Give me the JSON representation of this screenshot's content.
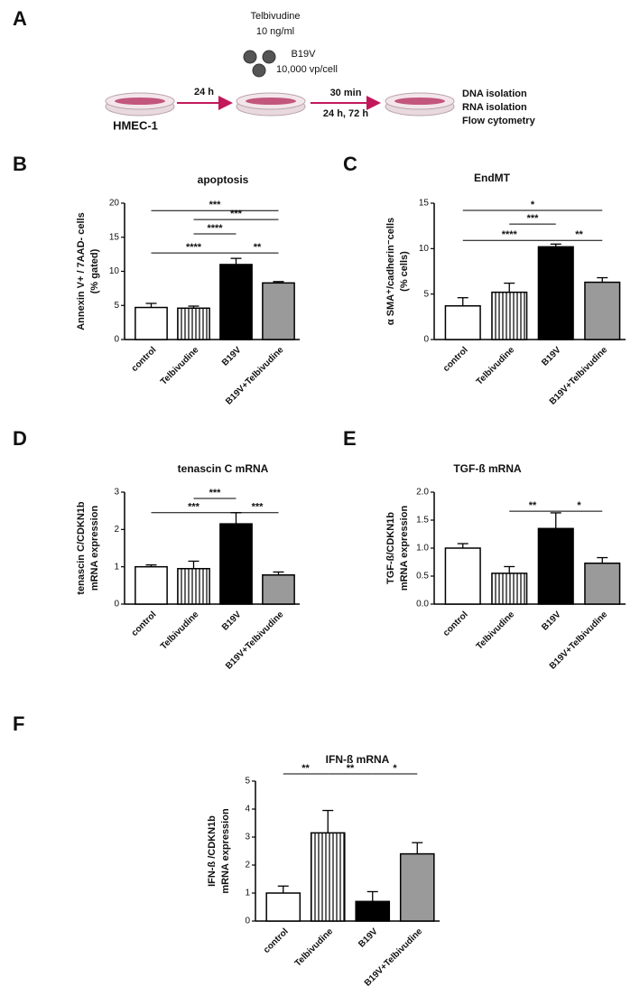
{
  "schema": {
    "panel": "A",
    "drug": "Telbivudine",
    "drug_dose": "10 ng/ml",
    "virus": "B19V",
    "virus_dose": "10,000 vp/cell",
    "step1": "24 h",
    "cells": "HMEC-1",
    "step2a": "30 min",
    "step2b": "24 h, 72 h",
    "readouts": [
      "DNA isolation",
      "RNA isolation",
      "Flow cytometry"
    ]
  },
  "chart_data": [
    {
      "type": "bar",
      "panel": "B",
      "title": "apoptosis",
      "ylabel": [
        "Annexin V+ / 7AAD- cells",
        "(% gated)"
      ],
      "categories": [
        "control",
        "Telbivudine",
        "B19V",
        "B19V+Telbivudine"
      ],
      "values": [
        4.7,
        4.6,
        11.0,
        8.3
      ],
      "errors": [
        0.6,
        0.3,
        0.9,
        0.2
      ],
      "colors": [
        "#ffffff",
        "#ffffff",
        "#000000",
        "#9a9a9a"
      ],
      "hatch": [
        false,
        true,
        false,
        false
      ],
      "ylim": [
        0,
        20
      ],
      "yticks": [
        0,
        5,
        10,
        15,
        20
      ],
      "significance": [
        {
          "from": 0,
          "to": 3,
          "y": 18.9,
          "label": "***"
        },
        {
          "from": 1,
          "to": 3,
          "y": 17.6,
          "label": "***"
        },
        {
          "from": 1,
          "to": 2,
          "y": 15.5,
          "label": "****"
        },
        {
          "from": 0,
          "to": 2,
          "y": 12.7,
          "label": "****"
        },
        {
          "from": 2,
          "to": 3,
          "y": 12.7,
          "label": "**"
        }
      ]
    },
    {
      "type": "bar",
      "panel": "C",
      "title": "EndMT",
      "ylabel": [
        "α SMA⁺/cadherin⁻cells",
        "(% cells)"
      ],
      "categories": [
        "control",
        "Telbivudine",
        "B19V",
        "B19V+Telbivudine"
      ],
      "values": [
        3.7,
        5.2,
        10.2,
        6.3
      ],
      "errors": [
        0.9,
        1.0,
        0.3,
        0.5
      ],
      "colors": [
        "#ffffff",
        "#ffffff",
        "#000000",
        "#9a9a9a"
      ],
      "hatch": [
        false,
        true,
        false,
        false
      ],
      "ylim": [
        0,
        15
      ],
      "yticks": [
        0,
        5,
        10,
        15
      ],
      "significance": [
        {
          "from": 0,
          "to": 3,
          "y": 14.2,
          "label": "*"
        },
        {
          "from": 1,
          "to": 2,
          "y": 12.7,
          "label": "***"
        },
        {
          "from": 0,
          "to": 2,
          "y": 10.9,
          "label": "****"
        },
        {
          "from": 2,
          "to": 3,
          "y": 10.9,
          "label": "**"
        }
      ]
    },
    {
      "type": "bar",
      "panel": "D",
      "title": "tenascin C mRNA",
      "ylabel": [
        "tenascin C/CDKN1b",
        "mRNA expression"
      ],
      "categories": [
        "control",
        "Telbivudine",
        "B19V",
        "B19V+Telbivudine"
      ],
      "values": [
        1.0,
        0.95,
        2.15,
        0.78
      ],
      "errors": [
        0.05,
        0.2,
        0.3,
        0.08
      ],
      "colors": [
        "#ffffff",
        "#ffffff",
        "#000000",
        "#9a9a9a"
      ],
      "hatch": [
        false,
        true,
        false,
        false
      ],
      "ylim": [
        0,
        3
      ],
      "yticks": [
        0,
        1,
        2,
        3
      ],
      "significance": [
        {
          "from": 1,
          "to": 2,
          "y": 2.83,
          "label": "***"
        },
        {
          "from": 0,
          "to": 2,
          "y": 2.45,
          "label": "***"
        },
        {
          "from": 2,
          "to": 3,
          "y": 2.45,
          "label": "***"
        }
      ]
    },
    {
      "type": "bar",
      "panel": "E",
      "title": "TGF-ß mRNA",
      "ylabel": [
        "TGF-ß/CDKN1b",
        "mRNA expression"
      ],
      "categories": [
        "control",
        "Telbivudine",
        "B19V",
        "B19V+Telbivudine"
      ],
      "values": [
        1.0,
        0.55,
        1.35,
        0.73
      ],
      "errors": [
        0.08,
        0.12,
        0.28,
        0.1
      ],
      "colors": [
        "#ffffff",
        "#ffffff",
        "#000000",
        "#9a9a9a"
      ],
      "hatch": [
        false,
        true,
        false,
        false
      ],
      "ylim": [
        0,
        2
      ],
      "yticks": [
        {
          "value": 0,
          "label": "0.0"
        },
        0.5,
        {
          "value": 1,
          "label": "1.0"
        },
        1.5,
        {
          "value": 2,
          "label": "2.0"
        }
      ],
      "significance": [
        {
          "from": 1,
          "to": 2,
          "y": 1.66,
          "label": "**"
        },
        {
          "from": 2,
          "to": 3,
          "y": 1.66,
          "label": "*"
        }
      ]
    },
    {
      "type": "bar",
      "panel": "F",
      "title": "IFN-ß mRNA",
      "ylabel": [
        "IFN-ß /CDKN1b",
        "mRNA expression"
      ],
      "categories": [
        "control",
        "Telbivudine",
        "B19V",
        "B19V+Telbivudine"
      ],
      "values": [
        1.0,
        3.15,
        0.7,
        2.4
      ],
      "errors": [
        0.25,
        0.8,
        0.35,
        0.4
      ],
      "colors": [
        "#ffffff",
        "#ffffff",
        "#000000",
        "#9a9a9a"
      ],
      "hatch": [
        false,
        true,
        false,
        false
      ],
      "ylim": [
        0,
        5
      ],
      "yticks": [
        0,
        1,
        2,
        3,
        4,
        5
      ],
      "significance": [
        {
          "from": 0,
          "to": 1,
          "y": 5.26,
          "label": "**"
        },
        {
          "from": 1,
          "to": 2,
          "y": 5.26,
          "label": "**"
        },
        {
          "from": 2,
          "to": 3,
          "y": 5.26,
          "label": "*"
        }
      ]
    }
  ]
}
